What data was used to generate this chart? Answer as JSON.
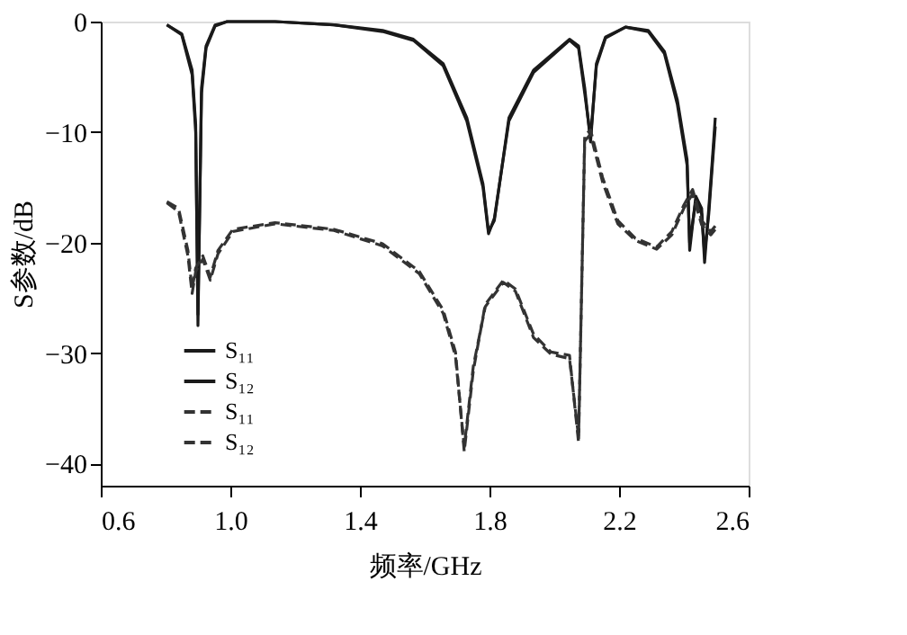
{
  "chart_data": {
    "type": "line",
    "xlabel": "频率/GHz",
    "ylabel": "S参数/dB",
    "xlim": [
      0.6,
      2.6
    ],
    "xticks": [
      0.6,
      {
        "value": 1.0,
        "label": "1.0"
      },
      1.4,
      1.8,
      2.2,
      2.6
    ],
    "ylim": [
      -42,
      0
    ],
    "yticks": [
      -40,
      -30,
      -20,
      -10,
      0
    ],
    "grid": false,
    "legend": "bottom left",
    "marker": "none",
    "series": [
      {
        "name": "S₁₁",
        "color": "#1a1a1a",
        "line_style": "solid",
        "x": [
          0.804,
          0.85,
          0.882,
          0.893,
          0.9,
          0.911,
          0.925,
          0.953,
          0.99,
          1.138,
          1.32,
          1.47,
          1.565,
          1.657,
          1.73,
          1.78,
          1.797,
          1.815,
          1.86,
          1.936,
          2.047,
          2.075,
          2.094,
          2.112,
          2.13,
          2.158,
          2.22,
          2.29,
          2.34,
          2.38,
          2.41,
          2.418,
          2.437,
          2.455,
          2.464,
          2.477,
          2.488,
          2.497
        ],
        "values": [
          -0.3,
          -1.1,
          -4.4,
          -9.3,
          -27.5,
          -6,
          -2.2,
          -0.3,
          0,
          0,
          -0.3,
          -0.8,
          -1.6,
          -3.8,
          -8.7,
          -14.7,
          -19,
          -18,
          -8.7,
          -4.4,
          -1.6,
          -2.2,
          -6,
          -10.9,
          -3.8,
          -1.4,
          -0.5,
          -0.8,
          -2.7,
          -7.1,
          -12.5,
          -20.7,
          -15.8,
          -16.9,
          -21.8,
          -16.9,
          -12.5,
          -8.7
        ]
      },
      {
        "name": "S₁₂",
        "color": "#1a1a1a",
        "line_style": "solid",
        "x": [
          0.804,
          0.85,
          0.882,
          0.893,
          0.9,
          0.911,
          0.925,
          0.953,
          0.99,
          1.138,
          1.32,
          1.47,
          1.565,
          1.657,
          1.73,
          1.78,
          1.797,
          1.815,
          1.86,
          1.936,
          2.047,
          2.075,
          2.094,
          2.112,
          2.13,
          2.158,
          2.22,
          2.29,
          2.34,
          2.38,
          2.41,
          2.418,
          2.437,
          2.455,
          2.464,
          2.477,
          2.488,
          2.497
        ],
        "values": [
          -0.3,
          -1.2,
          -4.8,
          -10,
          -26.5,
          -6.5,
          -2.4,
          -0.4,
          0,
          0,
          -0.3,
          -0.9,
          -1.7,
          -4,
          -9,
          -15,
          -19.2,
          -17.8,
          -9,
          -4.6,
          -1.7,
          -2.4,
          -6.5,
          -10.5,
          -4,
          -1.5,
          -0.5,
          -0.9,
          -2.9,
          -7.5,
          -13,
          -20,
          -16.2,
          -17.4,
          -21,
          -17.4,
          -13,
          -9.5
        ]
      },
      {
        "name": "S₁₁",
        "color": "#333333",
        "line_style": "dashed",
        "x": [
          0.804,
          0.84,
          0.869,
          0.882,
          0.893,
          0.915,
          0.938,
          0.962,
          1.008,
          1.138,
          1.32,
          1.47,
          1.583,
          1.657,
          1.695,
          1.722,
          1.75,
          1.787,
          1.843,
          1.88,
          1.936,
          1.99,
          2.047,
          2.075,
          2.094,
          2.112,
          2.149,
          2.196,
          2.25,
          2.316,
          2.363,
          2.4,
          2.427,
          2.455,
          2.483,
          2.497
        ],
        "values": [
          -16.3,
          -16.9,
          -20.7,
          -24.2,
          -22.3,
          -21.2,
          -23.1,
          -20.7,
          -18.8,
          -18.2,
          -18.8,
          -20.1,
          -22.6,
          -26.1,
          -29.9,
          -38.9,
          -31.6,
          -25.6,
          -23.4,
          -24.2,
          -28.3,
          -29.9,
          -30.2,
          -38.1,
          -10.3,
          -9.8,
          -14.1,
          -18,
          -19.6,
          -20.4,
          -19,
          -16.6,
          -15.2,
          -18,
          -19,
          -18.5
        ]
      },
      {
        "name": "S₁₂",
        "color": "#333333",
        "line_style": "dashed",
        "x": [
          0.804,
          0.84,
          0.869,
          0.882,
          0.893,
          0.915,
          0.938,
          0.962,
          1.008,
          1.138,
          1.32,
          1.47,
          1.583,
          1.657,
          1.695,
          1.722,
          1.75,
          1.787,
          1.843,
          1.88,
          1.936,
          1.99,
          2.047,
          2.075,
          2.094,
          2.112,
          2.149,
          2.196,
          2.25,
          2.316,
          2.363,
          2.4,
          2.427,
          2.455,
          2.483,
          2.497
        ],
        "values": [
          -16.4,
          -17.2,
          -21.2,
          -24.6,
          -22.6,
          -21.5,
          -23.4,
          -21,
          -19,
          -18.3,
          -18.9,
          -20.3,
          -22.8,
          -26.4,
          -30.3,
          -38.5,
          -31.2,
          -25.8,
          -23.6,
          -24.4,
          -28.6,
          -30.1,
          -30.5,
          -37.6,
          -10.8,
          -10.2,
          -14.5,
          -18.3,
          -19.8,
          -20.6,
          -19.3,
          -16.9,
          -15.6,
          -18.4,
          -19.3,
          -18.8
        ]
      }
    ]
  }
}
